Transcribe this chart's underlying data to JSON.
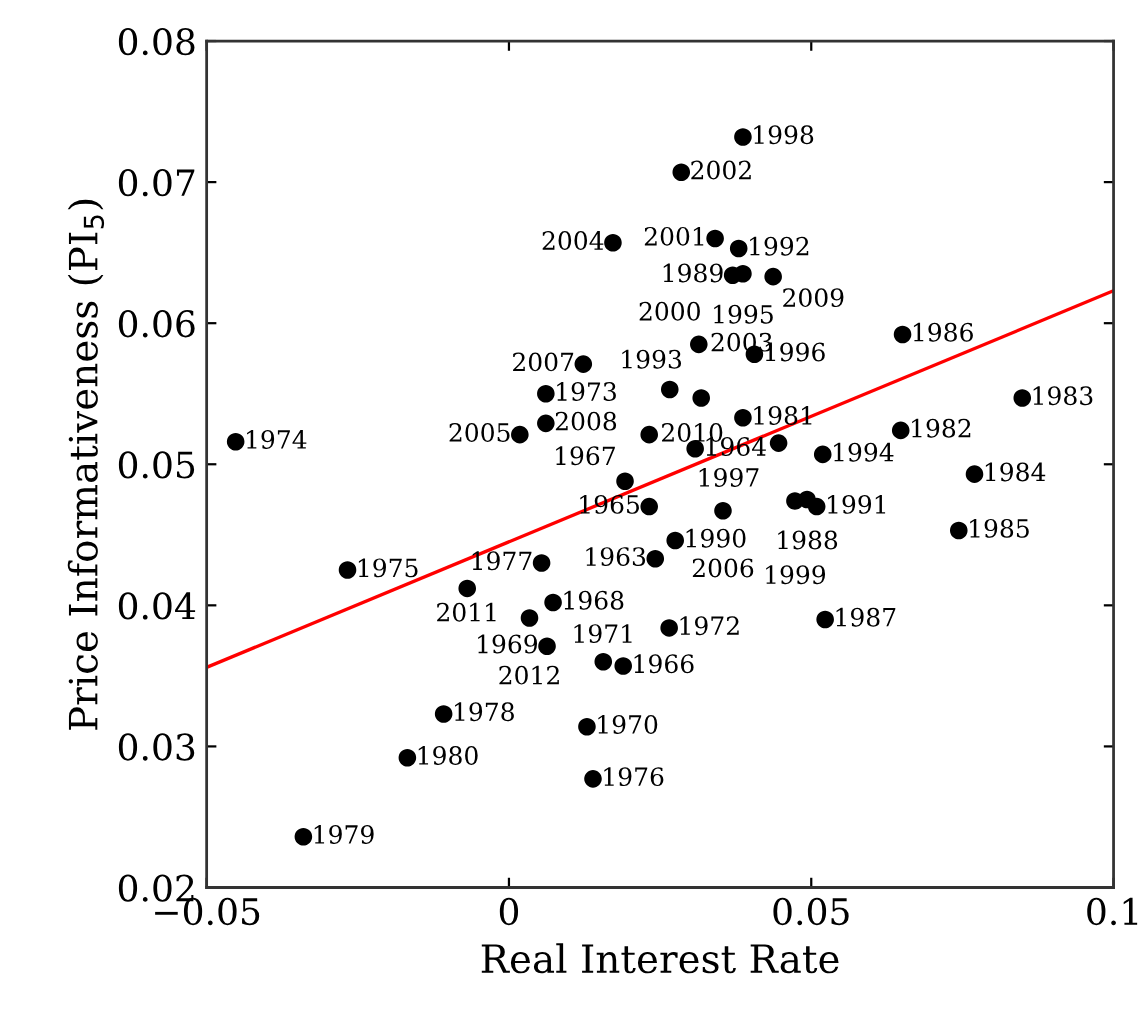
{
  "chart_data": {
    "type": "scatter",
    "xlabel": "Real Interest Rate",
    "ylabel": "Price Informativeness (PI$_{5}$)",
    "xlim": [
      -0.05,
      0.1
    ],
    "ylim": [
      0.02,
      0.08
    ],
    "xticks": [
      {
        "value": -0.05,
        "label": "−0.05"
      },
      0,
      0.05,
      0.1
    ],
    "yticks": [
      0.02,
      0.03,
      0.04,
      0.05,
      0.06,
      0.07,
      0.08
    ],
    "grid": false,
    "legend": false,
    "marker": "circle",
    "series": [
      {
        "color": "#000000",
        "x": [
          0.0242,
          0.0308,
          0.0232,
          0.0189,
          0.0192,
          0.0073,
          0.0063,
          0.0129,
          0.0156,
          0.0265,
          0.0061,
          -0.0452,
          -0.0267,
          0.0139,
          0.0054,
          -0.0108,
          -0.034,
          -0.0168,
          0.0387,
          0.0648,
          0.0849,
          0.077,
          0.0744,
          0.0651,
          0.0523,
          0.0493,
          0.037,
          0.0275,
          0.0509,
          0.038,
          0.0318,
          0.0519,
          0.0387,
          0.0406,
          0.0446,
          0.0387,
          0.0473,
          0.0266,
          0.0341,
          0.0285,
          0.0314,
          0.0172,
          0.0018,
          0.0354,
          0.0123,
          0.0061,
          0.0437,
          0.0232,
          -0.0069,
          0.0034
        ],
        "values": [
          0.0433,
          0.0511,
          0.047,
          0.0357,
          0.0488,
          0.0402,
          0.0371,
          0.0314,
          0.036,
          0.0384,
          0.055,
          0.0516,
          0.0425,
          0.0277,
          0.043,
          0.0323,
          0.0236,
          0.0292,
          0.0533,
          0.0524,
          0.0547,
          0.0493,
          0.0453,
          0.0592,
          0.039,
          0.0475,
          0.0634,
          0.0446,
          0.047,
          0.0653,
          0.0547,
          0.0507,
          0.0635,
          0.0578,
          0.0515,
          0.0732,
          0.0474,
          0.0553,
          0.066,
          0.0707,
          0.0585,
          0.0657,
          0.0521,
          0.0467,
          0.0571,
          0.0529,
          0.0633,
          0.0521,
          0.0412,
          0.0391
        ]
      },
      {
        "type": "line",
        "marker": "none",
        "color": "#ff0000",
        "x": [
          -0.05,
          0.1
        ],
        "values": [
          0.0356,
          0.0623
        ]
      }
    ],
    "annotations": [
      {
        "text": "1963",
        "x": 0.0242,
        "y": 0.0433
      },
      {
        "text": "1964",
        "x": 0.0308,
        "y": 0.0511
      },
      {
        "text": "1965",
        "x": 0.0232,
        "y": 0.047
      },
      {
        "text": "1966",
        "x": 0.0189,
        "y": 0.0357
      },
      {
        "text": "1967",
        "x": 0.0192,
        "y": 0.0488
      },
      {
        "text": "1968",
        "x": 0.0073,
        "y": 0.0402
      },
      {
        "text": "1969",
        "x": 0.0063,
        "y": 0.0371
      },
      {
        "text": "1970",
        "x": 0.0129,
        "y": 0.0314
      },
      {
        "text": "1971",
        "x": 0.0156,
        "y": 0.036
      },
      {
        "text": "1972",
        "x": 0.0265,
        "y": 0.0384
      },
      {
        "text": "1973",
        "x": 0.0061,
        "y": 0.055
      },
      {
        "text": "1974",
        "x": -0.0452,
        "y": 0.0516
      },
      {
        "text": "1975",
        "x": -0.0267,
        "y": 0.0425
      },
      {
        "text": "1976",
        "x": 0.0139,
        "y": 0.0277
      },
      {
        "text": "1977",
        "x": 0.0054,
        "y": 0.043
      },
      {
        "text": "1978",
        "x": -0.0108,
        "y": 0.0323
      },
      {
        "text": "1979",
        "x": -0.034,
        "y": 0.0236
      },
      {
        "text": "1980",
        "x": -0.0168,
        "y": 0.0292
      },
      {
        "text": "1981",
        "x": 0.0387,
        "y": 0.0533
      },
      {
        "text": "1982",
        "x": 0.0648,
        "y": 0.0524
      },
      {
        "text": "1983",
        "x": 0.0849,
        "y": 0.0547
      },
      {
        "text": "1984",
        "x": 0.077,
        "y": 0.0493
      },
      {
        "text": "1985",
        "x": 0.0744,
        "y": 0.0453
      },
      {
        "text": "1986",
        "x": 0.0651,
        "y": 0.0592
      },
      {
        "text": "1987",
        "x": 0.0523,
        "y": 0.039
      },
      {
        "text": "1988",
        "x": 0.0493,
        "y": 0.0475
      },
      {
        "text": "1989",
        "x": 0.037,
        "y": 0.0634
      },
      {
        "text": "1990",
        "x": 0.0275,
        "y": 0.0446
      },
      {
        "text": "1991",
        "x": 0.0509,
        "y": 0.047
      },
      {
        "text": "1992",
        "x": 0.038,
        "y": 0.0653
      },
      {
        "text": "1993",
        "x": 0.0318,
        "y": 0.0547
      },
      {
        "text": "1994",
        "x": 0.0519,
        "y": 0.0507
      },
      {
        "text": "1995",
        "x": 0.0387,
        "y": 0.0635
      },
      {
        "text": "1996",
        "x": 0.0406,
        "y": 0.0578
      },
      {
        "text": "1997",
        "x": 0.0446,
        "y": 0.0515
      },
      {
        "text": "1998",
        "x": 0.0387,
        "y": 0.0732
      },
      {
        "text": "1999",
        "x": 0.0473,
        "y": 0.0474
      },
      {
        "text": "2000",
        "x": 0.0266,
        "y": 0.0553
      },
      {
        "text": "2001",
        "x": 0.0341,
        "y": 0.066
      },
      {
        "text": "2002",
        "x": 0.0285,
        "y": 0.0707
      },
      {
        "text": "2003",
        "x": 0.0314,
        "y": 0.0585
      },
      {
        "text": "2004",
        "x": 0.0172,
        "y": 0.0657
      },
      {
        "text": "2005",
        "x": 0.0018,
        "y": 0.0521
      },
      {
        "text": "2006",
        "x": 0.0354,
        "y": 0.0467
      },
      {
        "text": "2007",
        "x": 0.0123,
        "y": 0.0571
      },
      {
        "text": "2008",
        "x": 0.0061,
        "y": 0.0529
      },
      {
        "text": "2009",
        "x": 0.0437,
        "y": 0.0633
      },
      {
        "text": "2010",
        "x": 0.0232,
        "y": 0.0521
      },
      {
        "text": "2011",
        "x": -0.0069,
        "y": 0.0412
      },
      {
        "text": "2012",
        "x": 0.0034,
        "y": 0.0391
      }
    ]
  }
}
